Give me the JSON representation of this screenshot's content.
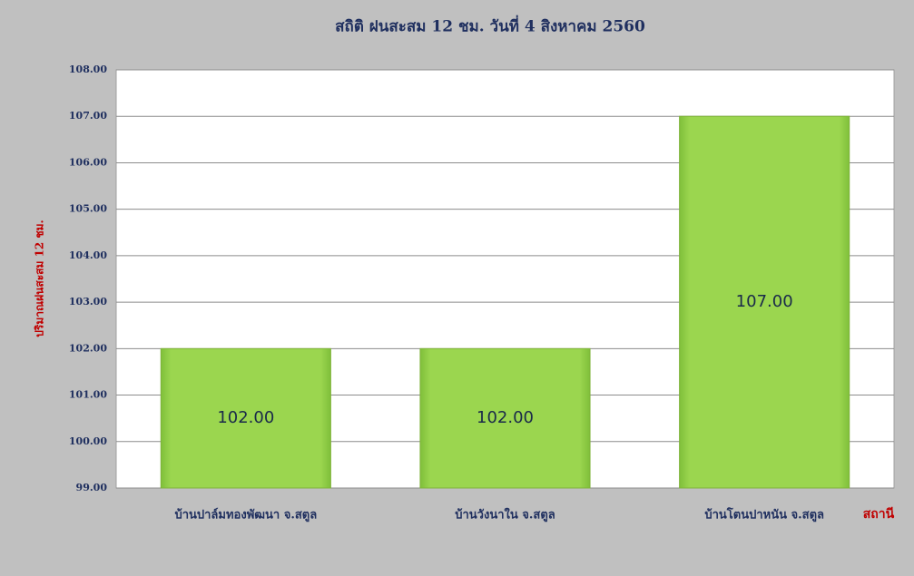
{
  "chart_data": {
    "type": "bar",
    "title": "สถิติ ฝนสะสม 12 ชม. วันที่ 4 สิงหาคม 2560",
    "y_label": "ปริมาณฝนสะสม 12 ชม.",
    "x_label": "สถานี",
    "categories": [
      "บ้านปาล์มทองพัฒนา จ.สตูล",
      "บ้านวังนาใน จ.สตูล",
      "บ้านโตนปาหนัน จ.สตูล"
    ],
    "values": [
      102,
      102,
      107
    ],
    "value_labels": [
      "102.00",
      "102.00",
      "107.00"
    ],
    "color": "#9bd64f",
    "ylim": [
      99,
      108
    ],
    "yticks": [
      {
        "value": 99,
        "label": "99.00"
      },
      {
        "value": 100,
        "label": "100.00"
      },
      {
        "value": 101,
        "label": "101.00"
      },
      {
        "value": 102,
        "label": "102.00"
      },
      {
        "value": 103,
        "label": "103.00"
      },
      {
        "value": 104,
        "label": "104.00"
      },
      {
        "value": 105,
        "label": "105.00"
      },
      {
        "value": 106,
        "label": "106.00"
      },
      {
        "value": 107,
        "label": "107.00"
      },
      {
        "value": 108,
        "label": "108.00"
      }
    ],
    "grid": true
  }
}
